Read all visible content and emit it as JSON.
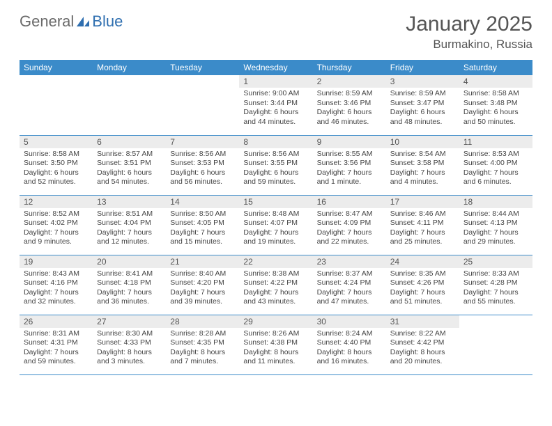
{
  "logo": {
    "textA": "General",
    "textB": "Blue"
  },
  "month_title": "January 2025",
  "location": "Burmakino, Russia",
  "colors": {
    "header_bg": "#3b8bc9",
    "header_fg": "#ffffff",
    "daynum_bg": "#ececec",
    "text": "#444444",
    "border": "#3b8bc9"
  },
  "weekdays": [
    "Sunday",
    "Monday",
    "Tuesday",
    "Wednesday",
    "Thursday",
    "Friday",
    "Saturday"
  ],
  "weeks": [
    [
      {
        "day": "",
        "sunrise": "",
        "sunset": "",
        "daylight": ""
      },
      {
        "day": "",
        "sunrise": "",
        "sunset": "",
        "daylight": ""
      },
      {
        "day": "",
        "sunrise": "",
        "sunset": "",
        "daylight": ""
      },
      {
        "day": "1",
        "sunrise": "Sunrise: 9:00 AM",
        "sunset": "Sunset: 3:44 PM",
        "daylight": "Daylight: 6 hours and 44 minutes."
      },
      {
        "day": "2",
        "sunrise": "Sunrise: 8:59 AM",
        "sunset": "Sunset: 3:46 PM",
        "daylight": "Daylight: 6 hours and 46 minutes."
      },
      {
        "day": "3",
        "sunrise": "Sunrise: 8:59 AM",
        "sunset": "Sunset: 3:47 PM",
        "daylight": "Daylight: 6 hours and 48 minutes."
      },
      {
        "day": "4",
        "sunrise": "Sunrise: 8:58 AM",
        "sunset": "Sunset: 3:48 PM",
        "daylight": "Daylight: 6 hours and 50 minutes."
      }
    ],
    [
      {
        "day": "5",
        "sunrise": "Sunrise: 8:58 AM",
        "sunset": "Sunset: 3:50 PM",
        "daylight": "Daylight: 6 hours and 52 minutes."
      },
      {
        "day": "6",
        "sunrise": "Sunrise: 8:57 AM",
        "sunset": "Sunset: 3:51 PM",
        "daylight": "Daylight: 6 hours and 54 minutes."
      },
      {
        "day": "7",
        "sunrise": "Sunrise: 8:56 AM",
        "sunset": "Sunset: 3:53 PM",
        "daylight": "Daylight: 6 hours and 56 minutes."
      },
      {
        "day": "8",
        "sunrise": "Sunrise: 8:56 AM",
        "sunset": "Sunset: 3:55 PM",
        "daylight": "Daylight: 6 hours and 59 minutes."
      },
      {
        "day": "9",
        "sunrise": "Sunrise: 8:55 AM",
        "sunset": "Sunset: 3:56 PM",
        "daylight": "Daylight: 7 hours and 1 minute."
      },
      {
        "day": "10",
        "sunrise": "Sunrise: 8:54 AM",
        "sunset": "Sunset: 3:58 PM",
        "daylight": "Daylight: 7 hours and 4 minutes."
      },
      {
        "day": "11",
        "sunrise": "Sunrise: 8:53 AM",
        "sunset": "Sunset: 4:00 PM",
        "daylight": "Daylight: 7 hours and 6 minutes."
      }
    ],
    [
      {
        "day": "12",
        "sunrise": "Sunrise: 8:52 AM",
        "sunset": "Sunset: 4:02 PM",
        "daylight": "Daylight: 7 hours and 9 minutes."
      },
      {
        "day": "13",
        "sunrise": "Sunrise: 8:51 AM",
        "sunset": "Sunset: 4:04 PM",
        "daylight": "Daylight: 7 hours and 12 minutes."
      },
      {
        "day": "14",
        "sunrise": "Sunrise: 8:50 AM",
        "sunset": "Sunset: 4:05 PM",
        "daylight": "Daylight: 7 hours and 15 minutes."
      },
      {
        "day": "15",
        "sunrise": "Sunrise: 8:48 AM",
        "sunset": "Sunset: 4:07 PM",
        "daylight": "Daylight: 7 hours and 19 minutes."
      },
      {
        "day": "16",
        "sunrise": "Sunrise: 8:47 AM",
        "sunset": "Sunset: 4:09 PM",
        "daylight": "Daylight: 7 hours and 22 minutes."
      },
      {
        "day": "17",
        "sunrise": "Sunrise: 8:46 AM",
        "sunset": "Sunset: 4:11 PM",
        "daylight": "Daylight: 7 hours and 25 minutes."
      },
      {
        "day": "18",
        "sunrise": "Sunrise: 8:44 AM",
        "sunset": "Sunset: 4:13 PM",
        "daylight": "Daylight: 7 hours and 29 minutes."
      }
    ],
    [
      {
        "day": "19",
        "sunrise": "Sunrise: 8:43 AM",
        "sunset": "Sunset: 4:16 PM",
        "daylight": "Daylight: 7 hours and 32 minutes."
      },
      {
        "day": "20",
        "sunrise": "Sunrise: 8:41 AM",
        "sunset": "Sunset: 4:18 PM",
        "daylight": "Daylight: 7 hours and 36 minutes."
      },
      {
        "day": "21",
        "sunrise": "Sunrise: 8:40 AM",
        "sunset": "Sunset: 4:20 PM",
        "daylight": "Daylight: 7 hours and 39 minutes."
      },
      {
        "day": "22",
        "sunrise": "Sunrise: 8:38 AM",
        "sunset": "Sunset: 4:22 PM",
        "daylight": "Daylight: 7 hours and 43 minutes."
      },
      {
        "day": "23",
        "sunrise": "Sunrise: 8:37 AM",
        "sunset": "Sunset: 4:24 PM",
        "daylight": "Daylight: 7 hours and 47 minutes."
      },
      {
        "day": "24",
        "sunrise": "Sunrise: 8:35 AM",
        "sunset": "Sunset: 4:26 PM",
        "daylight": "Daylight: 7 hours and 51 minutes."
      },
      {
        "day": "25",
        "sunrise": "Sunrise: 8:33 AM",
        "sunset": "Sunset: 4:28 PM",
        "daylight": "Daylight: 7 hours and 55 minutes."
      }
    ],
    [
      {
        "day": "26",
        "sunrise": "Sunrise: 8:31 AM",
        "sunset": "Sunset: 4:31 PM",
        "daylight": "Daylight: 7 hours and 59 minutes."
      },
      {
        "day": "27",
        "sunrise": "Sunrise: 8:30 AM",
        "sunset": "Sunset: 4:33 PM",
        "daylight": "Daylight: 8 hours and 3 minutes."
      },
      {
        "day": "28",
        "sunrise": "Sunrise: 8:28 AM",
        "sunset": "Sunset: 4:35 PM",
        "daylight": "Daylight: 8 hours and 7 minutes."
      },
      {
        "day": "29",
        "sunrise": "Sunrise: 8:26 AM",
        "sunset": "Sunset: 4:38 PM",
        "daylight": "Daylight: 8 hours and 11 minutes."
      },
      {
        "day": "30",
        "sunrise": "Sunrise: 8:24 AM",
        "sunset": "Sunset: 4:40 PM",
        "daylight": "Daylight: 8 hours and 16 minutes."
      },
      {
        "day": "31",
        "sunrise": "Sunrise: 8:22 AM",
        "sunset": "Sunset: 4:42 PM",
        "daylight": "Daylight: 8 hours and 20 minutes."
      },
      {
        "day": "",
        "sunrise": "",
        "sunset": "",
        "daylight": ""
      }
    ]
  ]
}
